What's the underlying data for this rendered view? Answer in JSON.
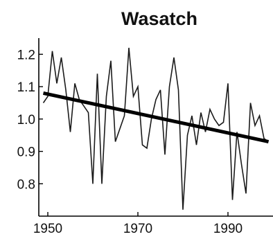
{
  "chart_data": {
    "type": "line",
    "title": "Wasatch",
    "xlabel": "",
    "ylabel": "",
    "xlim": [
      1948,
      2000
    ],
    "ylim": [
      0.7,
      1.25
    ],
    "xticks": [
      1950,
      1970,
      1990
    ],
    "xtick_labels": [
      "1950",
      "1970",
      "1990"
    ],
    "yticks": [
      0.8,
      0.9,
      1.0,
      1.1,
      1.2
    ],
    "ytick_labels": [
      "0.8",
      "0.9",
      "1.0",
      "1.1",
      "1.2"
    ],
    "grid": false,
    "legend": "none",
    "series": [
      {
        "x": [
          1949,
          1950,
          1951,
          1952,
          1953,
          1954,
          1955,
          1956,
          1957,
          1958,
          1959,
          1960,
          1961,
          1962,
          1963,
          1964,
          1965,
          1966,
          1967,
          1968,
          1969,
          1970,
          1971,
          1972,
          1973,
          1974,
          1975,
          1976,
          1977,
          1978,
          1979,
          1980,
          1981,
          1982,
          1983,
          1984,
          1985,
          1986,
          1987,
          1988,
          1989,
          1990,
          1991,
          1992,
          1993,
          1994,
          1995,
          1996,
          1997,
          1998,
          1999
        ],
        "values": [
          1.05,
          1.07,
          1.21,
          1.11,
          1.19,
          1.09,
          0.96,
          1.11,
          1.06,
          1.04,
          1.02,
          0.8,
          1.14,
          0.8,
          1.07,
          1.18,
          0.93,
          0.97,
          1.01,
          1.22,
          1.07,
          1.1,
          0.92,
          0.91,
          1.0,
          1.06,
          1.09,
          0.89,
          1.1,
          1.19,
          1.09,
          0.72,
          0.95,
          1.01,
          0.92,
          1.02,
          0.96,
          1.03,
          1.0,
          0.98,
          0.99,
          1.11,
          0.75,
          0.96,
          0.86,
          0.77,
          1.05,
          0.98,
          1.01,
          0.94,
          0.93
        ]
      }
    ],
    "trend": {
      "x": [
        1949,
        1999
      ],
      "values": [
        1.08,
        0.93
      ]
    },
    "colors": {
      "series": "#1a1a1a",
      "trend": "#000000",
      "axis": "#000000"
    }
  }
}
